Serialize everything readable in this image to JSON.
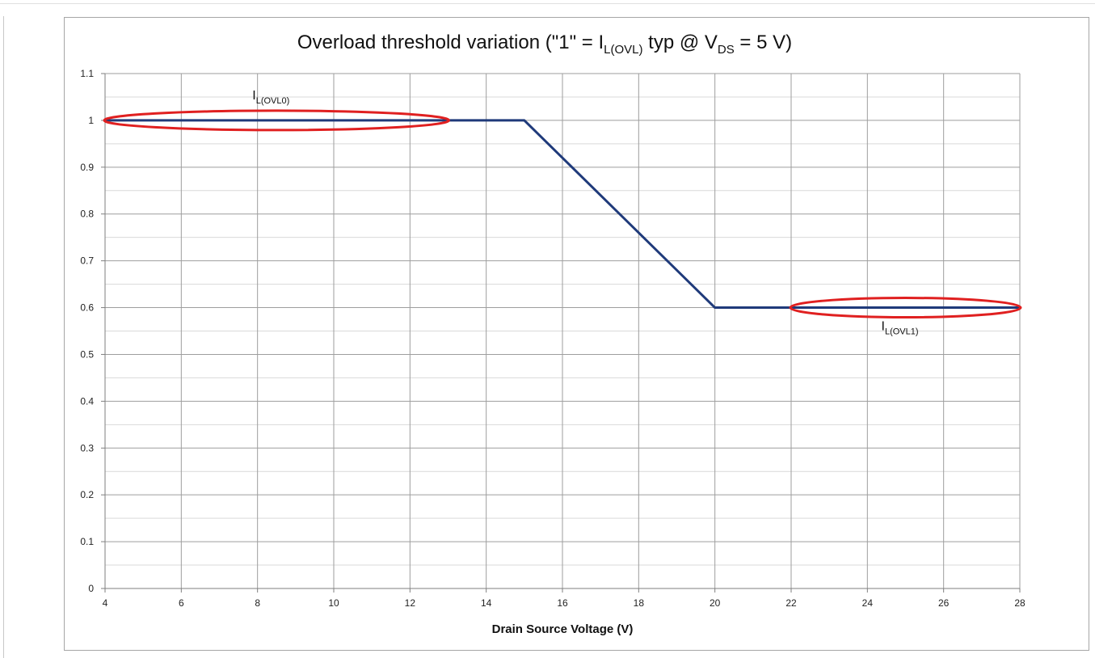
{
  "chart_data": {
    "type": "line",
    "title": {
      "prefix": "Overload threshold variation (\"1\" = I",
      "sub1": "L(OVL)",
      "middle": " typ @ V",
      "sub2": "DS",
      "suffix": " = 5 V)"
    },
    "xlabel": "Drain Source Voltage (V)",
    "ylabel": "",
    "xlim": [
      4,
      28
    ],
    "ylim": [
      0,
      1.1
    ],
    "x_ticks": [
      "4",
      "6",
      "8",
      "10",
      "12",
      "14",
      "16",
      "18",
      "20",
      "22",
      "24",
      "26",
      "28"
    ],
    "y_ticks": [
      "0",
      "0.1",
      "0.2",
      "0.3",
      "0.4",
      "0.5",
      "0.6",
      "0.7",
      "0.8",
      "0.9",
      "1",
      "1.1"
    ],
    "grid": true,
    "series": [
      {
        "color": "#1f3a7a",
        "x": [
          4,
          15,
          20,
          28
        ],
        "y": [
          1,
          1,
          0.6,
          0.6
        ]
      }
    ],
    "annotations": [
      {
        "label_main": "I",
        "label_sub": "L(OVL0)",
        "x": 8.5,
        "y": 1,
        "x_range": [
          4,
          13
        ],
        "color": "#e02020"
      },
      {
        "label_main": "I",
        "label_sub": "L(OVL1)",
        "x": 25,
        "y": 0.6,
        "x_range": [
          22,
          28
        ],
        "color": "#e02020"
      }
    ]
  }
}
